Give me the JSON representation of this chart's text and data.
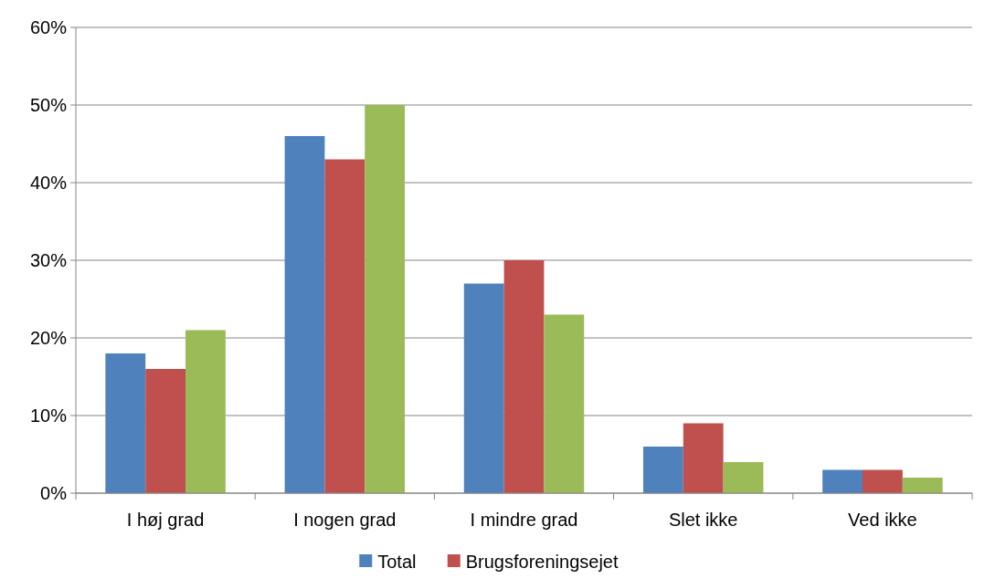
{
  "chart_data": {
    "type": "bar",
    "categories": [
      "I høj grad",
      "I nogen grad",
      "I mindre grad",
      "Slet ikke",
      "Ved ikke"
    ],
    "series": [
      {
        "name": "Total",
        "color": "#4f81bd",
        "values": [
          18,
          46,
          27,
          6,
          3
        ]
      },
      {
        "name": "Brugsforeningsejet",
        "color": "#c0504d",
        "values": [
          16,
          43,
          30,
          9,
          3
        ]
      },
      {
        "color": "#9bbb59",
        "values": [
          21,
          50,
          23,
          4,
          2
        ]
      }
    ],
    "ylim": [
      0,
      60
    ],
    "yticks": [
      {
        "value": 0,
        "label": "0%"
      },
      {
        "value": 10,
        "label": "10%"
      },
      {
        "value": 20,
        "label": "20%"
      },
      {
        "value": 30,
        "label": "30%"
      },
      {
        "value": 40,
        "label": "40%"
      },
      {
        "value": 50,
        "label": "50%"
      },
      {
        "value": 60,
        "label": "60%"
      }
    ],
    "grid": "y",
    "legend": "bottom"
  }
}
